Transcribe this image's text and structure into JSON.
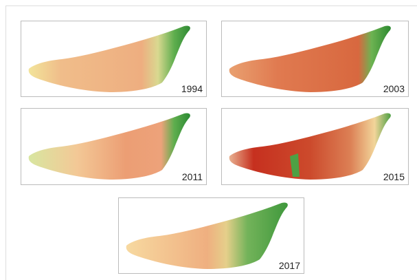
{
  "panels": [
    {
      "label": "1994"
    },
    {
      "label": "2003"
    },
    {
      "label": "2011"
    },
    {
      "label": "2015"
    },
    {
      "label": "2017"
    }
  ]
}
